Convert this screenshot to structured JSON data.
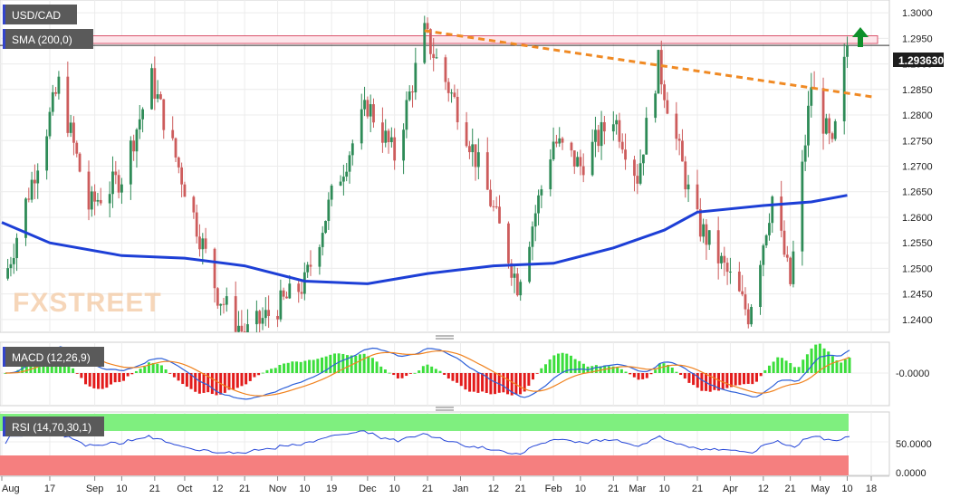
{
  "colors": {
    "up": "#2e8b57",
    "down": "#cd5c5c",
    "sma": "#1d3fd6",
    "trendline": "#f08a24",
    "macd_line": "#2c5fd8",
    "signal_line": "#f0821e",
    "hist_pos": "#3cde3c",
    "hist_neg": "#e31b1b",
    "rsi_line": "#2546d8",
    "rsi_overbought_zone": "#7fef7f",
    "rsi_oversold_zone": "#f57f7f",
    "resistance_band": "#fde5ea",
    "price_label_bg": "#1e1e1e",
    "badge_bg": "#5a5a5a"
  },
  "main_panel": {
    "symbol": "USD/CAD",
    "sma_label": "SMA (200,0)",
    "current_price": "1.293630",
    "watermark": "FXSTREET",
    "arrow_icon": "up-arrow-icon"
  },
  "macd_panel": {
    "label": "MACD (12,26,9)",
    "zero_tick": "-0.0000"
  },
  "rsi_panel": {
    "label": "RSI (14,70,30,1)",
    "ticks": [
      "50.0000",
      "0.0000"
    ]
  },
  "chart_data": {
    "type": "candlestick",
    "title": "USD/CAD",
    "x_ticks": [
      "Aug",
      "17",
      "Sep",
      "10",
      "21",
      "Oct",
      "12",
      "21",
      "Nov",
      "10",
      "19",
      "Dec",
      "10",
      "21",
      "Jan",
      "12",
      "21",
      "Feb",
      "10",
      "21",
      "Mar",
      "10",
      "21",
      "Apr",
      "12",
      "21",
      "May",
      "10",
      "18"
    ],
    "y_ticks": [
      "1.3000",
      "1.2950",
      "1.2900",
      "1.2850",
      "1.2800",
      "1.2750",
      "1.2700",
      "1.2650",
      "1.2600",
      "1.2550",
      "1.2500",
      "1.2450",
      "1.2400"
    ],
    "ylim": [
      1.2375,
      1.3025
    ],
    "last_price": 1.29363,
    "resistance_zone": [
      1.294,
      1.2955
    ],
    "trendline": {
      "start": {
        "date": "2021-12-20",
        "value": 1.2965
      },
      "end": {
        "date": "2022-05-19",
        "value": 1.2835
      }
    },
    "series": [
      {
        "name": "USD/CAD",
        "ohlc_swings": [
          {
            "date": "2021-08-02",
            "close": 1.248
          },
          {
            "date": "2021-08-20",
            "close": 1.286
          },
          {
            "date": "2021-08-30",
            "close": 1.262
          },
          {
            "date": "2021-09-10",
            "close": 1.268
          },
          {
            "date": "2021-09-20",
            "close": 1.287
          },
          {
            "date": "2021-10-01",
            "close": 1.266
          },
          {
            "date": "2021-10-12",
            "close": 1.245
          },
          {
            "date": "2021-10-21",
            "close": 1.237
          },
          {
            "date": "2021-11-10",
            "close": 1.247
          },
          {
            "date": "2021-11-19",
            "close": 1.264
          },
          {
            "date": "2021-12-01",
            "close": 1.282
          },
          {
            "date": "2021-12-10",
            "close": 1.272
          },
          {
            "date": "2021-12-20",
            "close": 1.296
          },
          {
            "date": "2022-01-01",
            "close": 1.28
          },
          {
            "date": "2022-01-10",
            "close": 1.265
          },
          {
            "date": "2022-01-20",
            "close": 1.247
          },
          {
            "date": "2022-02-01",
            "close": 1.275
          },
          {
            "date": "2022-02-10",
            "close": 1.27
          },
          {
            "date": "2022-02-21",
            "close": 1.28
          },
          {
            "date": "2022-03-01",
            "close": 1.268
          },
          {
            "date": "2022-03-08",
            "close": 1.29
          },
          {
            "date": "2022-03-20",
            "close": 1.26
          },
          {
            "date": "2022-04-01",
            "close": 1.248
          },
          {
            "date": "2022-04-07",
            "close": 1.241
          },
          {
            "date": "2022-04-15",
            "close": 1.264
          },
          {
            "date": "2022-04-21",
            "close": 1.247
          },
          {
            "date": "2022-04-28",
            "close": 1.286
          },
          {
            "date": "2022-05-05",
            "close": 1.273
          },
          {
            "date": "2022-05-10",
            "close": 1.2936
          }
        ]
      },
      {
        "name": "SMA (200,0)",
        "points": [
          {
            "date": "2021-08-01",
            "value": 1.259
          },
          {
            "date": "2021-08-17",
            "value": 1.255
          },
          {
            "date": "2021-09-10",
            "value": 1.2525
          },
          {
            "date": "2021-10-01",
            "value": 1.252
          },
          {
            "date": "2021-10-21",
            "value": 1.2505
          },
          {
            "date": "2021-11-10",
            "value": 1.2475
          },
          {
            "date": "2021-12-01",
            "value": 1.247
          },
          {
            "date": "2021-12-21",
            "value": 1.249
          },
          {
            "date": "2022-01-12",
            "value": 1.2505
          },
          {
            "date": "2022-02-01",
            "value": 1.251
          },
          {
            "date": "2022-02-21",
            "value": 1.254
          },
          {
            "date": "2022-03-10",
            "value": 1.2575
          },
          {
            "date": "2022-03-21",
            "value": 1.261
          },
          {
            "date": "2022-04-12",
            "value": 1.2623
          },
          {
            "date": "2022-04-28",
            "value": 1.263
          },
          {
            "date": "2022-05-10",
            "value": 1.2643
          }
        ]
      }
    ],
    "macd": {
      "zero": 0,
      "signal_state": "positive and rising"
    },
    "rsi": {
      "levels": [
        70,
        50,
        30
      ],
      "current": 68
    }
  }
}
